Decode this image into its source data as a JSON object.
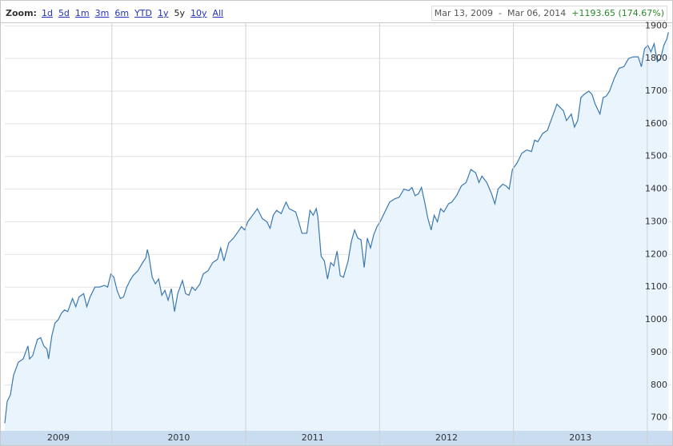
{
  "toolbar": {
    "zoom_label": "Zoom:",
    "options": [
      "1d",
      "5d",
      "1m",
      "3m",
      "6m",
      "YTD",
      "1y",
      "5y",
      "10y",
      "All"
    ],
    "start": "Mar 13, 2009",
    "separator": "-",
    "end": "Mar 06, 2014",
    "change": "+1193.65 (174.67%)"
  },
  "chart_data": {
    "type": "area",
    "color": "#3a78b0",
    "fill": "#eaf4fd",
    "grid": true,
    "xlim": [
      2009.2,
      2014.18
    ],
    "xticks": [
      2010,
      2011,
      2012,
      2013,
      2014
    ],
    "x_bands": [
      2009,
      2010,
      2011,
      2012,
      2013
    ],
    "ylim": [
      660,
      1908
    ],
    "yticks": [
      700,
      800,
      900,
      1000,
      1100,
      1200,
      1300,
      1400,
      1500,
      1600,
      1700,
      1800,
      1900
    ],
    "x": [
      2009.2,
      2009.218,
      2009.242,
      2009.265,
      2009.301,
      2009.337,
      2009.373,
      2009.385,
      2009.408,
      2009.444,
      2009.468,
      2009.492,
      2009.515,
      2009.527,
      2009.551,
      2009.575,
      2009.599,
      2009.623,
      2009.646,
      2009.67,
      2009.706,
      2009.73,
      2009.754,
      2009.789,
      2009.813,
      2009.837,
      2009.873,
      2009.908,
      2009.944,
      2009.968,
      2009.992,
      2010.015,
      2010.039,
      2010.063,
      2010.087,
      2010.111,
      2010.135,
      2010.158,
      2010.194,
      2010.23,
      2010.254,
      2010.265,
      2010.277,
      2010.301,
      2010.325,
      2010.349,
      2010.373,
      2010.396,
      2010.42,
      2010.444,
      2010.468,
      2010.492,
      2010.527,
      2010.551,
      2010.575,
      2010.599,
      2010.623,
      2010.658,
      2010.682,
      2010.718,
      2010.754,
      2010.789,
      2010.813,
      2010.837,
      2010.873,
      2010.908,
      2010.944,
      2010.968,
      2010.992,
      2011.015,
      2011.051,
      2011.087,
      2011.123,
      2011.158,
      2011.182,
      2011.206,
      2011.23,
      2011.265,
      2011.301,
      2011.325,
      2011.373,
      2011.396,
      2011.42,
      2011.456,
      2011.48,
      2011.504,
      2011.527,
      2011.539,
      2011.563,
      2011.587,
      2011.611,
      2011.635,
      2011.658,
      2011.682,
      2011.706,
      2011.73,
      2011.765,
      2011.789,
      2011.813,
      2011.837,
      2011.861,
      2011.885,
      2011.908,
      2011.932,
      2011.956,
      2011.98,
      2012.004,
      2012.039,
      2012.075,
      2012.111,
      2012.146,
      2012.182,
      2012.218,
      2012.242,
      2012.265,
      2012.289,
      2012.313,
      2012.337,
      2012.361,
      2012.385,
      2012.408,
      2012.432,
      2012.456,
      2012.48,
      2012.515,
      2012.539,
      2012.575,
      2012.611,
      2012.646,
      2012.682,
      2012.718,
      2012.742,
      2012.765,
      2012.801,
      2012.837,
      2012.861,
      2012.885,
      2012.92,
      2012.944,
      2012.968,
      2012.992,
      2013.027,
      2013.063,
      2013.099,
      2013.135,
      2013.158,
      2013.182,
      2013.218,
      2013.254,
      2013.289,
      2013.325,
      2013.349,
      2013.373,
      2013.396,
      2013.432,
      2013.456,
      2013.48,
      2013.504,
      2013.527,
      2013.563,
      2013.587,
      2013.611,
      2013.646,
      2013.67,
      2013.694,
      2013.718,
      2013.754,
      2013.789,
      2013.825,
      2013.861,
      2013.896,
      2013.932,
      2013.956,
      2013.98,
      2014.004,
      2014.027,
      2014.051,
      2014.075,
      2014.099,
      2014.123,
      2014.146,
      2014.158
    ],
    "values": [
      683,
      750,
      770,
      830,
      870,
      880,
      920,
      880,
      890,
      940,
      945,
      920,
      910,
      880,
      950,
      990,
      1000,
      1020,
      1030,
      1025,
      1065,
      1040,
      1070,
      1080,
      1040,
      1070,
      1100,
      1100,
      1105,
      1100,
      1140,
      1130,
      1090,
      1065,
      1070,
      1100,
      1120,
      1135,
      1150,
      1175,
      1190,
      1215,
      1195,
      1130,
      1110,
      1125,
      1075,
      1090,
      1060,
      1095,
      1025,
      1080,
      1120,
      1080,
      1075,
      1100,
      1090,
      1110,
      1140,
      1150,
      1175,
      1185,
      1220,
      1180,
      1235,
      1250,
      1270,
      1285,
      1275,
      1300,
      1320,
      1340,
      1310,
      1300,
      1280,
      1320,
      1335,
      1325,
      1360,
      1340,
      1330,
      1300,
      1265,
      1265,
      1335,
      1320,
      1340,
      1315,
      1195,
      1180,
      1125,
      1175,
      1165,
      1210,
      1135,
      1130,
      1180,
      1240,
      1275,
      1250,
      1245,
      1160,
      1250,
      1220,
      1260,
      1285,
      1300,
      1330,
      1360,
      1370,
      1375,
      1400,
      1395,
      1405,
      1380,
      1385,
      1405,
      1360,
      1310,
      1275,
      1320,
      1300,
      1340,
      1330,
      1355,
      1360,
      1380,
      1410,
      1420,
      1460,
      1450,
      1420,
      1440,
      1420,
      1385,
      1355,
      1400,
      1415,
      1410,
      1400,
      1460,
      1480,
      1510,
      1520,
      1515,
      1550,
      1545,
      1570,
      1580,
      1620,
      1660,
      1650,
      1640,
      1610,
      1630,
      1590,
      1610,
      1680,
      1690,
      1700,
      1690,
      1660,
      1630,
      1680,
      1685,
      1700,
      1740,
      1770,
      1775,
      1800,
      1805,
      1805,
      1775,
      1830,
      1840,
      1820,
      1845,
      1790,
      1800,
      1840,
      1860,
      1880
    ]
  }
}
